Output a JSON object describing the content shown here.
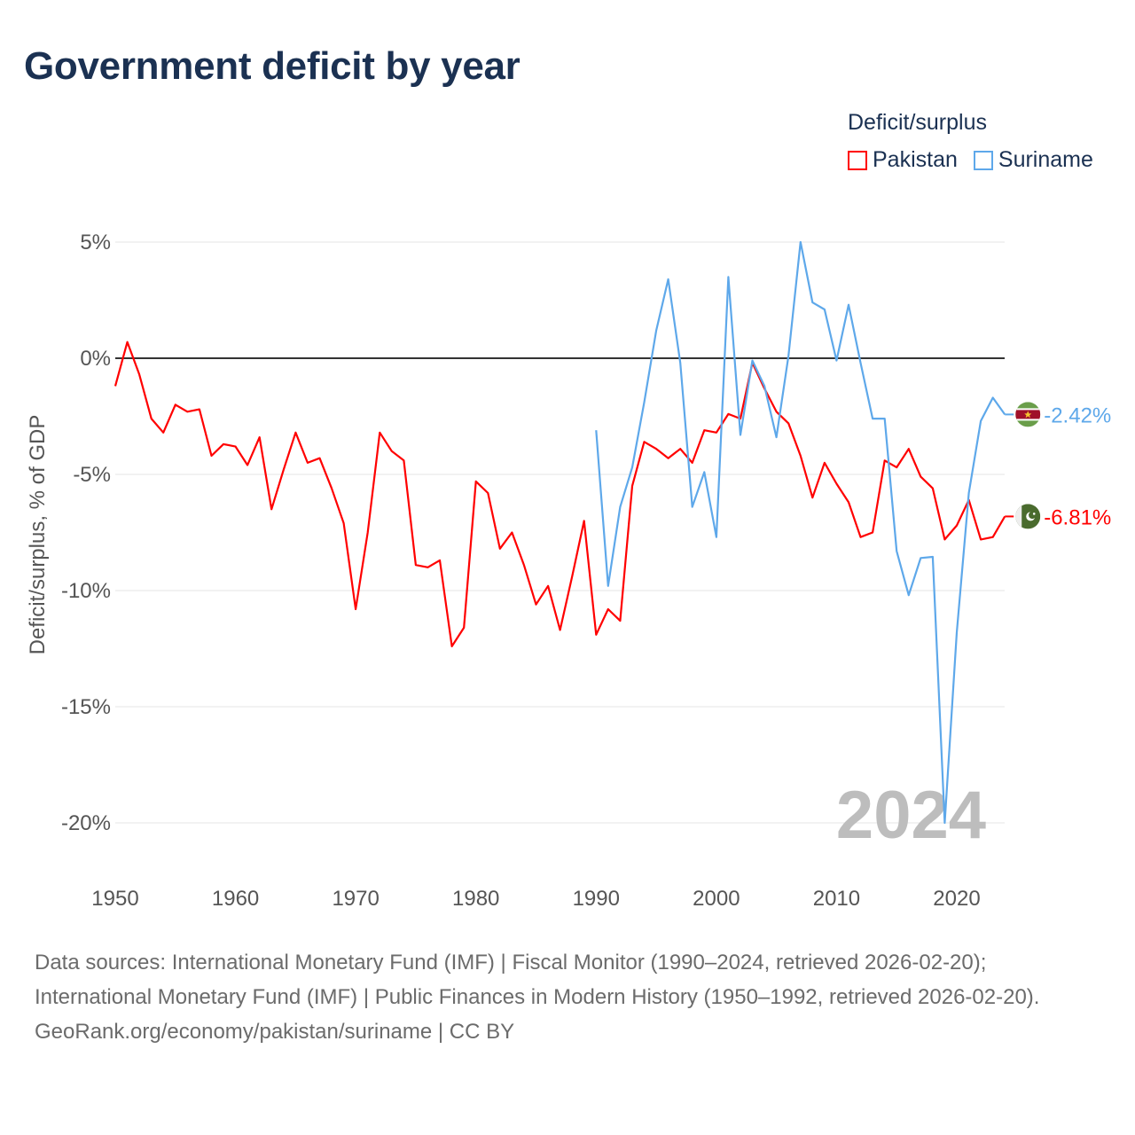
{
  "title": "Government deficit by year",
  "legend": {
    "title": "Deficit/surplus",
    "items": [
      {
        "label": "Pakistan",
        "color": "#ff0000"
      },
      {
        "label": "Suriname",
        "color": "#5ea8ea"
      }
    ]
  },
  "footer": {
    "sources": "Data sources: International Monetary Fund (IMF) | Fiscal Monitor (1990–2024, retrieved 2026-02-20); International Monetary Fund (IMF) | Public Finances in Modern History (1950–1992, retrieved 2026-02-20).",
    "credit": "GeoRank.org/economy/pakistan/suriname | CC BY"
  },
  "chart_data": {
    "type": "line",
    "title": "Government deficit by year",
    "ylabel": "Deficit/surplus, % of GDP",
    "xlabel": "",
    "xlim": [
      1950,
      2024
    ],
    "ylim": [
      -20,
      5
    ],
    "x_ticks": [
      "1950",
      "1960",
      "1970",
      "1980",
      "1990",
      "2000",
      "2010",
      "2020"
    ],
    "x_tick_values": [
      1950,
      1960,
      1970,
      1980,
      1990,
      2000,
      2010,
      2020
    ],
    "y_ticks": [
      "5%",
      "0%",
      "-5%",
      "-10%",
      "-15%",
      "-20%"
    ],
    "y_tick_values": [
      5,
      0,
      -5,
      -10,
      -15,
      -20
    ],
    "grid": true,
    "legend_position": "top-right",
    "year_watermark": "2024",
    "series": [
      {
        "name": "Pakistan",
        "color": "#ff0000",
        "end_label": "-6.81%",
        "flag": "pakistan-flag",
        "start_year": 1950,
        "values": [
          -1.2,
          0.7,
          -0.7,
          -2.6,
          -3.2,
          -2.0,
          -2.3,
          -2.2,
          -4.2,
          -3.7,
          -3.8,
          -4.6,
          -3.4,
          -6.5,
          -4.8,
          -3.2,
          -4.5,
          -4.3,
          -5.6,
          -7.1,
          -10.8,
          -7.5,
          -3.2,
          -4.0,
          -4.4,
          -8.9,
          -9.0,
          -8.7,
          -12.4,
          -11.6,
          -5.3,
          -5.8,
          -8.2,
          -7.5,
          -8.9,
          -10.6,
          -9.8,
          -11.7,
          -9.4,
          -7.0,
          -11.9,
          -10.8,
          -11.3,
          -5.5,
          -3.6,
          -3.9,
          -4.3,
          -3.9,
          -4.5,
          -3.1,
          -3.2,
          -2.4,
          -2.6,
          -0.2,
          -1.3,
          -2.3,
          -2.8,
          -4.2,
          -6.0,
          -4.5,
          -5.4,
          -6.2,
          -7.7,
          -7.5,
          -4.4,
          -4.7,
          -3.9,
          -5.1,
          -5.6,
          -7.8,
          -7.2,
          -6.1,
          -7.8,
          -7.7,
          -6.81
        ]
      },
      {
        "name": "Suriname",
        "color": "#5ea8ea",
        "end_label": "-2.42%",
        "flag": "suriname-flag",
        "start_year": 1990,
        "values": [
          -3.1,
          -9.8,
          -6.4,
          -4.7,
          -1.9,
          1.2,
          3.4,
          -0.2,
          -6.4,
          -4.9,
          -7.7,
          3.5,
          -3.3,
          -0.1,
          -1.2,
          -3.4,
          0.1,
          5.0,
          2.4,
          2.1,
          -0.1,
          2.3,
          -0.2,
          -2.6,
          -2.6,
          -8.3,
          -10.2,
          -8.6,
          -8.55,
          -20.0,
          -11.8,
          -5.8,
          -2.7,
          -1.7,
          -2.42
        ]
      }
    ]
  }
}
